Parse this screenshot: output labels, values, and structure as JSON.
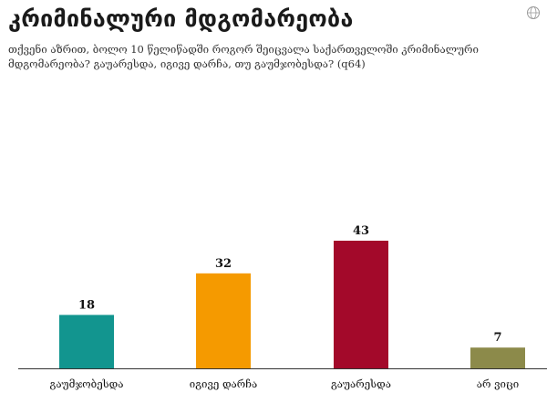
{
  "title": "კრიმინალური მდგომარეობა",
  "subtitle": "თქვენი აზრით, ბოლო 10 წელიწადში როგორ შეიცვალა საქართველოში კრიმინალური მდგომარეობა? გაუარესდა, იგივე დარჩა, თუ გაუმჯობესდა? (q64)",
  "logo_icon": "globe-icon",
  "colors": {
    "bars": [
      "#12958f",
      "#f59a00",
      "#a3092a",
      "#8c8a4a"
    ],
    "axis": "#333333"
  },
  "chart_data": {
    "type": "bar",
    "title": "კრიმინალური მდგომარეობა",
    "categories": [
      "გაუმჯობესდა",
      "იგივე დარჩა",
      "გაუარესდა",
      "არ ვიცი"
    ],
    "values": [
      18,
      32,
      43,
      7
    ],
    "ylim": [
      0,
      43
    ],
    "xlabel": "",
    "ylabel": "",
    "grid": false
  }
}
